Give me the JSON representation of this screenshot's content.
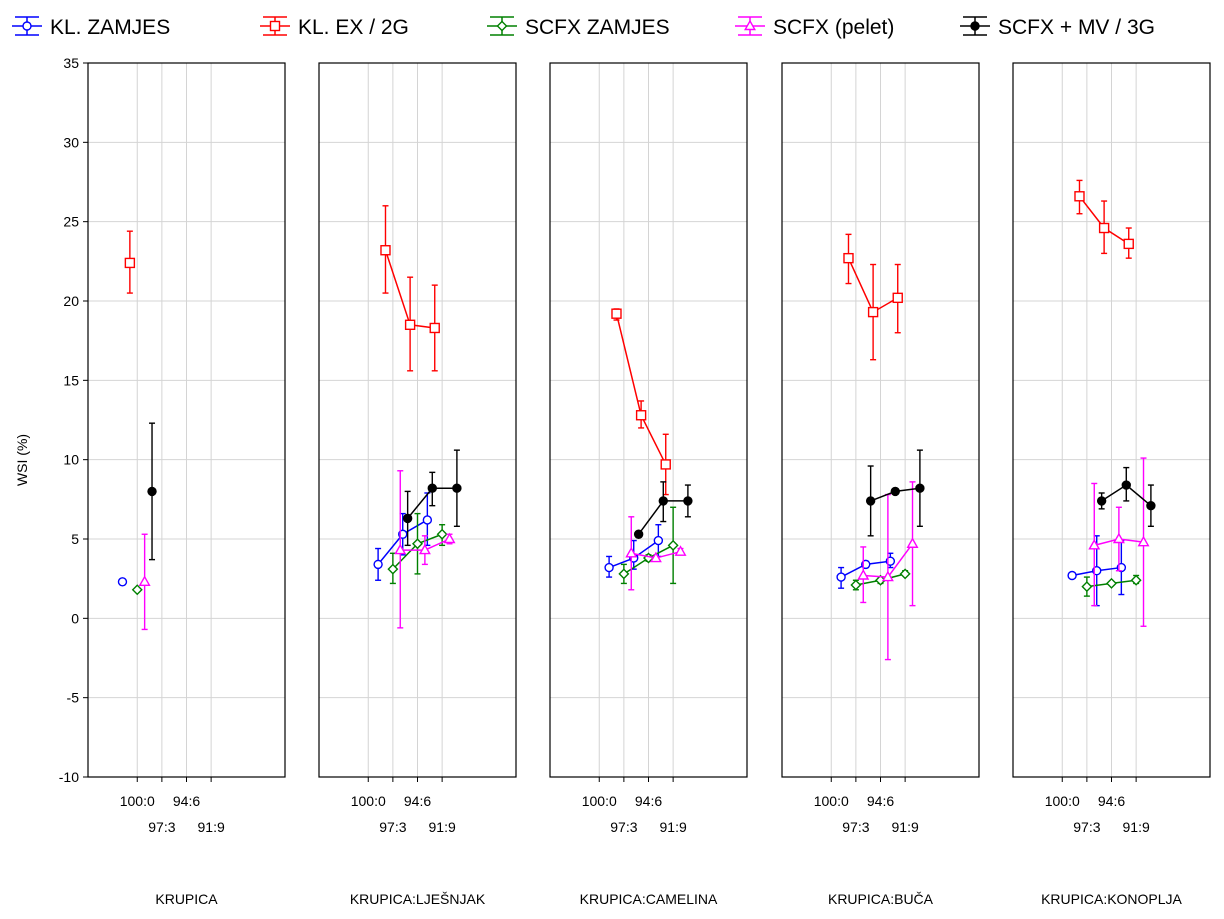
{
  "chart_data": {
    "type": "line",
    "ylabel": "WSI (%)",
    "ylim": [
      -10,
      35
    ],
    "yticks": [
      -10,
      -5,
      0,
      5,
      10,
      15,
      20,
      25,
      30,
      35
    ],
    "xlim": [
      0,
      4
    ],
    "x_tick_labels": [
      {
        "label": "100:0",
        "x": 1,
        "row": "upper"
      },
      {
        "label": "97:3",
        "x": 1.5,
        "row": "lower"
      },
      {
        "label": "94:6",
        "x": 2,
        "row": "upper"
      },
      {
        "label": "91:9",
        "x": 2.5,
        "row": "lower"
      }
    ],
    "grid": true,
    "legend_position": "top",
    "series_styles": [
      {
        "name": "KL. ZAMJES",
        "color": "#0000ff",
        "marker": "circle-open",
        "offset": -0.3
      },
      {
        "name": "KL. EX / 2G",
        "color": "#ff0000",
        "marker": "square-open",
        "offset": -0.15
      },
      {
        "name": "SCFX ZAMJES",
        "color": "#008000",
        "marker": "diamond-open",
        "offset": 0
      },
      {
        "name": "SCFX (pelet)",
        "color": "#ff00ff",
        "marker": "triangle-open",
        "offset": 0.15
      },
      {
        "name": "SCFX + MV / 3G",
        "color": "#000000",
        "marker": "circle-filled",
        "offset": 0.3
      }
    ],
    "panels": [
      {
        "title": "KRUPICA",
        "series": [
          {
            "name": "KL. ZAMJES",
            "points": [
              {
                "x": 1,
                "y": 2.3,
                "lo": 2.2,
                "hi": 2.4
              }
            ]
          },
          {
            "name": "KL. EX / 2G",
            "points": [
              {
                "x": 1,
                "y": 22.4,
                "lo": 20.5,
                "hi": 24.4
              }
            ]
          },
          {
            "name": "SCFX ZAMJES",
            "points": [
              {
                "x": 1,
                "y": 1.8,
                "lo": 1.7,
                "hi": 1.9
              }
            ]
          },
          {
            "name": "SCFX (pelet)",
            "points": [
              {
                "x": 1,
                "y": 2.3,
                "lo": -0.7,
                "hi": 5.3
              }
            ]
          },
          {
            "name": "SCFX + MV / 3G",
            "points": [
              {
                "x": 1,
                "y": 8.0,
                "lo": 3.7,
                "hi": 12.3
              }
            ]
          }
        ]
      },
      {
        "title": "KRUPICA:LJEŠNJAK",
        "series": [
          {
            "name": "KL. ZAMJES",
            "points": [
              {
                "x": 1.5,
                "y": 3.4,
                "lo": 2.4,
                "hi": 4.4
              },
              {
                "x": 2,
                "y": 5.3,
                "lo": 4.0,
                "hi": 6.6
              },
              {
                "x": 2.5,
                "y": 6.2,
                "lo": 4.6,
                "hi": 7.9
              }
            ]
          },
          {
            "name": "KL. EX / 2G",
            "points": [
              {
                "x": 1.5,
                "y": 23.2,
                "lo": 20.5,
                "hi": 26.0
              },
              {
                "x": 2,
                "y": 18.5,
                "lo": 15.6,
                "hi": 21.5
              },
              {
                "x": 2.5,
                "y": 18.3,
                "lo": 15.6,
                "hi": 21.0
              }
            ]
          },
          {
            "name": "SCFX ZAMJES",
            "points": [
              {
                "x": 1.5,
                "y": 3.1,
                "lo": 2.2,
                "hi": 4.1
              },
              {
                "x": 2,
                "y": 4.7,
                "lo": 2.8,
                "hi": 6.6
              },
              {
                "x": 2.5,
                "y": 5.3,
                "lo": 4.6,
                "hi": 5.9
              }
            ]
          },
          {
            "name": "SCFX (pelet)",
            "points": [
              {
                "x": 1.5,
                "y": 4.3,
                "lo": -0.6,
                "hi": 9.3
              },
              {
                "x": 2,
                "y": 4.3,
                "lo": 3.4,
                "hi": 5.2
              },
              {
                "x": 2.5,
                "y": 5.0,
                "lo": 4.7,
                "hi": 5.3
              }
            ]
          },
          {
            "name": "SCFX + MV / 3G",
            "points": [
              {
                "x": 1.5,
                "y": 6.3,
                "lo": 4.6,
                "hi": 8.0
              },
              {
                "x": 2,
                "y": 8.2,
                "lo": 7.1,
                "hi": 9.2
              },
              {
                "x": 2.5,
                "y": 8.2,
                "lo": 5.8,
                "hi": 10.6
              }
            ]
          }
        ]
      },
      {
        "title": "KRUPICA:CAMELINA",
        "series": [
          {
            "name": "KL. ZAMJES",
            "points": [
              {
                "x": 1.5,
                "y": 3.2,
                "lo": 2.6,
                "hi": 3.9
              },
              {
                "x": 2,
                "y": 3.8,
                "lo": 3.1,
                "hi": 4.9
              },
              {
                "x": 2.5,
                "y": 4.9,
                "lo": 3.9,
                "hi": 5.9
              }
            ]
          },
          {
            "name": "KL. EX / 2G",
            "points": [
              {
                "x": 1.5,
                "y": 19.2,
                "lo": 18.8,
                "hi": 19.5
              },
              {
                "x": 2,
                "y": 12.8,
                "lo": 12.0,
                "hi": 13.7
              },
              {
                "x": 2.5,
                "y": 9.7,
                "lo": 7.8,
                "hi": 11.6
              }
            ]
          },
          {
            "name": "SCFX ZAMJES",
            "points": [
              {
                "x": 1.5,
                "y": 2.8,
                "lo": 2.2,
                "hi": 3.4
              },
              {
                "x": 2,
                "y": 3.8,
                "lo": 3.6,
                "hi": 4.0
              },
              {
                "x": 2.5,
                "y": 4.6,
                "lo": 2.2,
                "hi": 7.0
              }
            ]
          },
          {
            "name": "SCFX (pelet)",
            "points": [
              {
                "x": 1.5,
                "y": 4.1,
                "lo": 1.8,
                "hi": 6.4
              },
              {
                "x": 2,
                "y": 3.8,
                "lo": 3.7,
                "hi": 3.9
              },
              {
                "x": 2.5,
                "y": 4.2,
                "lo": 4.0,
                "hi": 4.4
              }
            ]
          },
          {
            "name": "SCFX + MV / 3G",
            "points": [
              {
                "x": 1.5,
                "y": 5.3,
                "lo": 5.2,
                "hi": 5.4
              },
              {
                "x": 2,
                "y": 7.4,
                "lo": 6.1,
                "hi": 8.6
              },
              {
                "x": 2.5,
                "y": 7.4,
                "lo": 6.4,
                "hi": 8.4
              }
            ]
          }
        ]
      },
      {
        "title": "KRUPICA:BUČA",
        "series": [
          {
            "name": "KL. ZAMJES",
            "points": [
              {
                "x": 1.5,
                "y": 2.6,
                "lo": 1.9,
                "hi": 3.2
              },
              {
                "x": 2,
                "y": 3.4,
                "lo": 3.2,
                "hi": 3.6
              },
              {
                "x": 2.5,
                "y": 3.6,
                "lo": 3.2,
                "hi": 4.1
              }
            ]
          },
          {
            "name": "KL. EX / 2G",
            "points": [
              {
                "x": 1.5,
                "y": 22.7,
                "lo": 21.1,
                "hi": 24.2
              },
              {
                "x": 2,
                "y": 19.3,
                "lo": 16.3,
                "hi": 22.3
              },
              {
                "x": 2.5,
                "y": 20.2,
                "lo": 18.0,
                "hi": 22.3
              }
            ]
          },
          {
            "name": "SCFX ZAMJES",
            "points": [
              {
                "x": 1.5,
                "y": 2.1,
                "lo": 1.8,
                "hi": 2.4
              },
              {
                "x": 2,
                "y": 2.4,
                "lo": 2.2,
                "hi": 2.6
              },
              {
                "x": 2.5,
                "y": 2.8,
                "lo": 2.7,
                "hi": 3.0
              }
            ]
          },
          {
            "name": "SCFX (pelet)",
            "points": [
              {
                "x": 1.5,
                "y": 2.7,
                "lo": 1.0,
                "hi": 4.5
              },
              {
                "x": 2,
                "y": 2.6,
                "lo": -2.6,
                "hi": 7.8
              },
              {
                "x": 2.5,
                "y": 4.7,
                "lo": 0.8,
                "hi": 8.6
              }
            ]
          },
          {
            "name": "SCFX + MV / 3G",
            "points": [
              {
                "x": 1.5,
                "y": 7.4,
                "lo": 5.2,
                "hi": 9.6
              },
              {
                "x": 2,
                "y": 8.0,
                "lo": 7.9,
                "hi": 8.1
              },
              {
                "x": 2.5,
                "y": 8.2,
                "lo": 5.8,
                "hi": 10.6
              }
            ]
          }
        ]
      },
      {
        "title": "KRUPICA:KONOPLJA",
        "series": [
          {
            "name": "KL. ZAMJES",
            "points": [
              {
                "x": 1.5,
                "y": 2.7,
                "lo": 2.6,
                "hi": 2.8
              },
              {
                "x": 2,
                "y": 3.0,
                "lo": 0.8,
                "hi": 5.2
              },
              {
                "x": 2.5,
                "y": 3.2,
                "lo": 1.5,
                "hi": 4.9
              }
            ]
          },
          {
            "name": "KL. EX / 2G",
            "points": [
              {
                "x": 1.5,
                "y": 26.6,
                "lo": 25.5,
                "hi": 27.6
              },
              {
                "x": 2,
                "y": 24.6,
                "lo": 23.0,
                "hi": 26.3
              },
              {
                "x": 2.5,
                "y": 23.6,
                "lo": 22.7,
                "hi": 24.6
              }
            ]
          },
          {
            "name": "SCFX ZAMJES",
            "points": [
              {
                "x": 1.5,
                "y": 2.0,
                "lo": 1.4,
                "hi": 2.6
              },
              {
                "x": 2,
                "y": 2.2,
                "lo": 2.1,
                "hi": 2.3
              },
              {
                "x": 2.5,
                "y": 2.4,
                "lo": 2.2,
                "hi": 2.7
              }
            ]
          },
          {
            "name": "SCFX (pelet)",
            "points": [
              {
                "x": 1.5,
                "y": 4.6,
                "lo": 0.8,
                "hi": 8.5
              },
              {
                "x": 2,
                "y": 5.0,
                "lo": 3.0,
                "hi": 7.0
              },
              {
                "x": 2.5,
                "y": 4.8,
                "lo": -0.5,
                "hi": 10.1
              }
            ]
          },
          {
            "name": "SCFX + MV / 3G",
            "points": [
              {
                "x": 1.5,
                "y": 7.4,
                "lo": 6.9,
                "hi": 7.9
              },
              {
                "x": 2,
                "y": 8.4,
                "lo": 7.4,
                "hi": 9.5
              },
              {
                "x": 2.5,
                "y": 7.1,
                "lo": 5.8,
                "hi": 8.4
              }
            ]
          }
        ]
      }
    ]
  }
}
